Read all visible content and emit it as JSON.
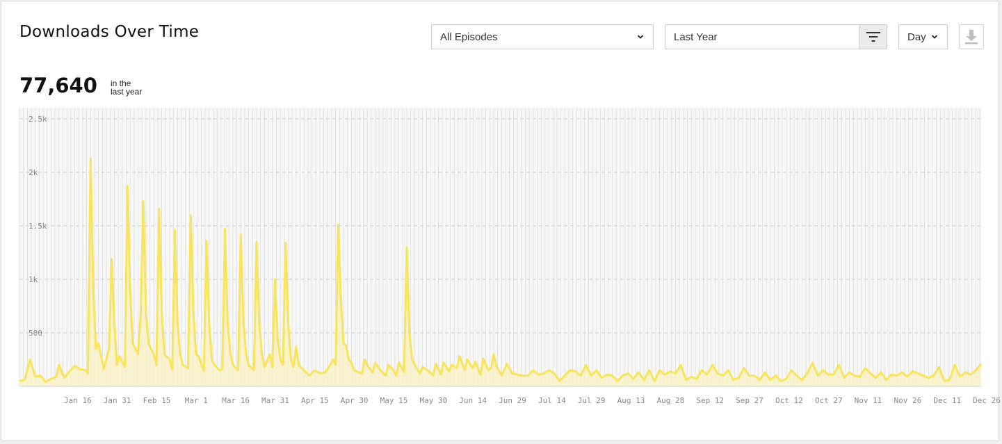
{
  "header": {
    "title": "Downloads Over Time"
  },
  "filters": {
    "episodes_value": "All Episodes",
    "range_value": "Last Year",
    "interval_value": "Day"
  },
  "icons": {
    "episodes_chevron": "chevron-down-icon",
    "filter": "filter-icon",
    "interval_chevron": "chevron-down-icon",
    "download": "download-icon"
  },
  "summary": {
    "total": "77,640",
    "label_line1": "in the",
    "label_line2": "last year"
  },
  "colors": {
    "series": "#f9e45c",
    "fill": "#fbf2c2"
  },
  "chart_data": {
    "type": "area",
    "title": "",
    "xlabel": "",
    "ylabel": "",
    "x_ticks": [
      "Jan 16",
      "Jan 31",
      "Feb 15",
      "Mar 1",
      "Mar 16",
      "Mar 31",
      "Apr 15",
      "Apr 30",
      "May 15",
      "May 30",
      "Jun 14",
      "Jun 29",
      "Jul 14",
      "Jul 29",
      "Aug 13",
      "Aug 28",
      "Sep 12",
      "Sep 27",
      "Oct 12",
      "Oct 27",
      "Nov 11",
      "Nov 26",
      "Dec 11",
      "Dec 26"
    ],
    "y_ticks": [
      "500",
      "1k",
      "1.5k",
      "2k",
      "2.5k"
    ],
    "y_tick_values": [
      500,
      1000,
      1500,
      2000,
      2500
    ],
    "ylim": [
      0,
      2500
    ],
    "grid": true,
    "legend": "none",
    "x_start": "Jan 1",
    "x_end": "Dec 31",
    "series": [
      {
        "points": [
          [
            0,
            50
          ],
          [
            2,
            60
          ],
          [
            4,
            250
          ],
          [
            6,
            90
          ],
          [
            8,
            100
          ],
          [
            10,
            40
          ],
          [
            12,
            70
          ],
          [
            14,
            90
          ],
          [
            15,
            200
          ],
          [
            17,
            80
          ],
          [
            19,
            140
          ],
          [
            21,
            190
          ],
          [
            23,
            160
          ],
          [
            25,
            150
          ],
          [
            26,
            120
          ],
          [
            27,
            2130
          ],
          [
            28,
            900
          ],
          [
            29,
            350
          ],
          [
            30,
            400
          ],
          [
            32,
            160
          ],
          [
            34,
            350
          ],
          [
            35,
            1190
          ],
          [
            36,
            600
          ],
          [
            37,
            200
          ],
          [
            38,
            280
          ],
          [
            40,
            180
          ],
          [
            41,
            1870
          ],
          [
            42,
            900
          ],
          [
            43,
            400
          ],
          [
            45,
            300
          ],
          [
            46,
            670
          ],
          [
            47,
            1730
          ],
          [
            48,
            700
          ],
          [
            49,
            400
          ],
          [
            51,
            300
          ],
          [
            52,
            200
          ],
          [
            53,
            1660
          ],
          [
            54,
            700
          ],
          [
            55,
            300
          ],
          [
            57,
            250
          ],
          [
            58,
            160
          ],
          [
            59,
            1460
          ],
          [
            60,
            600
          ],
          [
            61,
            300
          ],
          [
            62,
            200
          ],
          [
            64,
            170
          ],
          [
            65,
            1600
          ],
          [
            66,
            700
          ],
          [
            67,
            300
          ],
          [
            68,
            280
          ],
          [
            70,
            140
          ],
          [
            71,
            1360
          ],
          [
            72,
            600
          ],
          [
            73,
            250
          ],
          [
            74,
            200
          ],
          [
            76,
            150
          ],
          [
            77,
            160
          ],
          [
            78,
            1470
          ],
          [
            79,
            600
          ],
          [
            80,
            320
          ],
          [
            81,
            200
          ],
          [
            83,
            150
          ],
          [
            84,
            1420
          ],
          [
            85,
            600
          ],
          [
            86,
            300
          ],
          [
            87,
            200
          ],
          [
            89,
            150
          ],
          [
            90,
            1350
          ],
          [
            91,
            600
          ],
          [
            92,
            300
          ],
          [
            93,
            180
          ],
          [
            95,
            300
          ],
          [
            96,
            180
          ],
          [
            97,
            1000
          ],
          [
            98,
            450
          ],
          [
            99,
            250
          ],
          [
            100,
            200
          ],
          [
            101,
            1340
          ],
          [
            102,
            600
          ],
          [
            103,
            250
          ],
          [
            104,
            180
          ],
          [
            105,
            370
          ],
          [
            106,
            200
          ],
          [
            108,
            150
          ],
          [
            110,
            100
          ],
          [
            112,
            150
          ],
          [
            114,
            120
          ],
          [
            116,
            130
          ],
          [
            118,
            200
          ],
          [
            119,
            250
          ],
          [
            120,
            200
          ],
          [
            121,
            1510
          ],
          [
            122,
            800
          ],
          [
            123,
            400
          ],
          [
            124,
            380
          ],
          [
            125,
            250
          ],
          [
            126,
            220
          ],
          [
            127,
            150
          ],
          [
            128,
            140
          ],
          [
            130,
            120
          ],
          [
            131,
            250
          ],
          [
            132,
            200
          ],
          [
            134,
            130
          ],
          [
            135,
            220
          ],
          [
            137,
            150
          ],
          [
            139,
            100
          ],
          [
            140,
            200
          ],
          [
            142,
            150
          ],
          [
            143,
            100
          ],
          [
            144,
            220
          ],
          [
            146,
            130
          ],
          [
            147,
            1300
          ],
          [
            148,
            500
          ],
          [
            149,
            250
          ],
          [
            150,
            200
          ],
          [
            152,
            120
          ],
          [
            153,
            180
          ],
          [
            155,
            150
          ],
          [
            157,
            100
          ],
          [
            158,
            210
          ],
          [
            160,
            110
          ],
          [
            161,
            220
          ],
          [
            163,
            140
          ],
          [
            164,
            200
          ],
          [
            166,
            170
          ],
          [
            167,
            280
          ],
          [
            169,
            150
          ],
          [
            170,
            250
          ],
          [
            172,
            170
          ],
          [
            173,
            230
          ],
          [
            175,
            110
          ],
          [
            176,
            260
          ],
          [
            178,
            150
          ],
          [
            179,
            170
          ],
          [
            180,
            300
          ],
          [
            181,
            190
          ],
          [
            183,
            100
          ],
          [
            185,
            210
          ],
          [
            187,
            120
          ],
          [
            189,
            110
          ],
          [
            191,
            100
          ],
          [
            193,
            100
          ],
          [
            195,
            150
          ],
          [
            197,
            110
          ],
          [
            199,
            120
          ],
          [
            201,
            150
          ],
          [
            203,
            120
          ],
          [
            205,
            50
          ],
          [
            207,
            100
          ],
          [
            209,
            150
          ],
          [
            211,
            140
          ],
          [
            213,
            100
          ],
          [
            215,
            200
          ],
          [
            217,
            100
          ],
          [
            219,
            150
          ],
          [
            221,
            80
          ],
          [
            223,
            110
          ],
          [
            225,
            100
          ],
          [
            227,
            50
          ],
          [
            229,
            100
          ],
          [
            231,
            120
          ],
          [
            233,
            70
          ],
          [
            235,
            130
          ],
          [
            237,
            60
          ],
          [
            239,
            150
          ],
          [
            241,
            50
          ],
          [
            243,
            150
          ],
          [
            245,
            110
          ],
          [
            247,
            140
          ],
          [
            249,
            120
          ],
          [
            251,
            200
          ],
          [
            253,
            60
          ],
          [
            255,
            90
          ],
          [
            257,
            70
          ],
          [
            259,
            150
          ],
          [
            261,
            110
          ],
          [
            263,
            200
          ],
          [
            265,
            120
          ],
          [
            267,
            100
          ],
          [
            269,
            150
          ],
          [
            271,
            60
          ],
          [
            273,
            80
          ],
          [
            275,
            170
          ],
          [
            277,
            100
          ],
          [
            279,
            100
          ],
          [
            281,
            60
          ],
          [
            283,
            130
          ],
          [
            285,
            60
          ],
          [
            287,
            100
          ],
          [
            289,
            50
          ],
          [
            291,
            70
          ],
          [
            293,
            150
          ],
          [
            295,
            100
          ],
          [
            297,
            60
          ],
          [
            299,
            120
          ],
          [
            301,
            220
          ],
          [
            303,
            100
          ],
          [
            305,
            150
          ],
          [
            307,
            110
          ],
          [
            309,
            110
          ],
          [
            311,
            200
          ],
          [
            313,
            80
          ],
          [
            315,
            130
          ],
          [
            317,
            100
          ],
          [
            319,
            90
          ],
          [
            321,
            170
          ],
          [
            323,
            120
          ],
          [
            325,
            80
          ],
          [
            327,
            130
          ],
          [
            329,
            60
          ],
          [
            331,
            110
          ],
          [
            333,
            100
          ],
          [
            335,
            130
          ],
          [
            337,
            90
          ],
          [
            339,
            140
          ],
          [
            341,
            120
          ],
          [
            343,
            100
          ],
          [
            345,
            80
          ],
          [
            347,
            100
          ],
          [
            349,
            180
          ],
          [
            351,
            50
          ],
          [
            353,
            60
          ],
          [
            355,
            200
          ],
          [
            357,
            90
          ],
          [
            359,
            130
          ],
          [
            361,
            110
          ],
          [
            363,
            150
          ],
          [
            365,
            210
          ]
        ]
      }
    ]
  }
}
